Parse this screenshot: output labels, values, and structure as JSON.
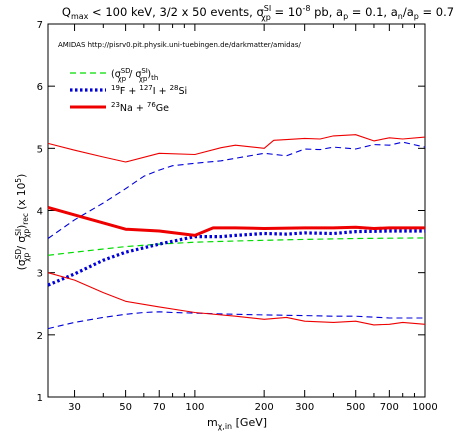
{
  "chart_data": {
    "type": "line",
    "title": "Q_max < 100 keV, 3/2 x 50 events, σ_χp^SI = 10^-8 pb, a_p = 0.1, a_n/a_p = 0.7",
    "title_parts": {
      "q": "Q",
      "q_sub": "max",
      "q_rest": " < 100 keV, 3/2 x 50 events, ",
      "sigma": "σ",
      "sigma_sup": "SI",
      "sigma_sub": "χp",
      "sigma_rest": " = 10",
      "exp": "-8",
      "pb_ap": " pb, a",
      "ap_sub": "p",
      "ap_val": " = 0.1, a",
      "an_sub": "n",
      "slash_a": "/a",
      "ap_sub2": "p",
      "ratio_val": " = 0.7"
    },
    "annotation": "AMIDAS   http://pisrv0.pit.physik.uni-tuebingen.de/darkmatter/amidas/",
    "xlabel": {
      "main": "m",
      "sub": "χ,in",
      "rest": " [GeV]"
    },
    "ylabel": {
      "open": "(σ",
      "sup1": "SD",
      "sub1": "χp",
      "mid": " / σ",
      "sup2": "SI",
      "sub2": "χp",
      "close": ")",
      "sub3": "rec",
      "rest": " (x 10",
      "exp": "5",
      "end": ")"
    },
    "x_scale": "log",
    "xlim": [
      23,
      1000
    ],
    "ylim": [
      1,
      7
    ],
    "x_ticks": [
      30,
      50,
      70,
      100,
      200,
      300,
      500,
      700,
      1000
    ],
    "x_tick_labels": [
      "30",
      "50",
      "70",
      "100",
      "200",
      "300",
      "500",
      "700",
      "1000"
    ],
    "y_ticks": [
      1,
      2,
      3,
      4,
      5,
      6,
      7
    ],
    "y_tick_labels": [
      "1",
      "2",
      "3",
      "4",
      "5",
      "6",
      "7"
    ],
    "x_minor_ticks": [
      40,
      60,
      80,
      90,
      400,
      600,
      800,
      900
    ],
    "legend_position": "top-left",
    "legend": [
      {
        "label": {
          "open": "(σ",
          "sup1": "SD",
          "sub1": "χp",
          "mid": " / σ",
          "sup2": "SI",
          "sub2": "χp",
          "close": ")",
          "sub3": "th"
        },
        "color": "#00dd00",
        "style": "dash"
      },
      {
        "label": {
          "sup1": "19",
          "t1": "F + ",
          "sup2": "127",
          "t2": "I + ",
          "sup3": "28",
          "t3": "Si"
        },
        "color": "#0000dd",
        "style": "dot"
      },
      {
        "label": {
          "sup1": "23",
          "t1": "Na + ",
          "sup2": "76",
          "t2": "Ge"
        },
        "color": "#ee0000",
        "style": "solid"
      }
    ],
    "series": [
      {
        "key": "theory",
        "color": "#00dd00",
        "style": "dash",
        "width": 1.2,
        "x": [
          23,
          30,
          40,
          50,
          70,
          100,
          150,
          200,
          300,
          500,
          700,
          1000
        ],
        "y": [
          3.28,
          3.33,
          3.38,
          3.42,
          3.46,
          3.49,
          3.51,
          3.52,
          3.535,
          3.55,
          3.555,
          3.56
        ]
      },
      {
        "key": "fisi_median",
        "color": "#0000dd",
        "style": "dot",
        "width": 3.2,
        "x": [
          23,
          30,
          40,
          50,
          70,
          100,
          130,
          150,
          200,
          250,
          300,
          400,
          500,
          700,
          1000
        ],
        "y": [
          2.8,
          2.98,
          3.2,
          3.33,
          3.46,
          3.58,
          3.58,
          3.6,
          3.63,
          3.62,
          3.64,
          3.63,
          3.66,
          3.67,
          3.67
        ]
      },
      {
        "key": "fisi_upper",
        "color": "#0000dd",
        "style": "dash",
        "width": 1.1,
        "x": [
          23,
          30,
          40,
          50,
          60,
          70,
          80,
          100,
          130,
          150,
          200,
          250,
          300,
          350,
          400,
          500,
          600,
          700,
          800,
          1000
        ],
        "y": [
          3.55,
          3.85,
          4.12,
          4.35,
          4.55,
          4.65,
          4.72,
          4.76,
          4.8,
          4.84,
          4.92,
          4.88,
          4.99,
          4.98,
          5.02,
          4.99,
          5.06,
          5.05,
          5.1,
          5.02
        ]
      },
      {
        "key": "fisi_lower",
        "color": "#0000dd",
        "style": "dash",
        "width": 1.1,
        "x": [
          23,
          30,
          40,
          50,
          60,
          70,
          80,
          100,
          150,
          200,
          300,
          400,
          500,
          700,
          1000
        ],
        "y": [
          2.1,
          2.2,
          2.28,
          2.33,
          2.36,
          2.37,
          2.36,
          2.35,
          2.33,
          2.32,
          2.31,
          2.3,
          2.3,
          2.27,
          2.27
        ]
      },
      {
        "key": "nage_median",
        "color": "#ee0000",
        "style": "solid",
        "width": 3.0,
        "x": [
          23,
          30,
          40,
          50,
          70,
          100,
          120,
          150,
          200,
          300,
          400,
          500,
          600,
          700,
          800,
          1000
        ],
        "y": [
          4.05,
          3.93,
          3.8,
          3.7,
          3.67,
          3.6,
          3.72,
          3.72,
          3.71,
          3.72,
          3.72,
          3.73,
          3.71,
          3.72,
          3.72,
          3.72
        ]
      },
      {
        "key": "nage_upper",
        "color": "#ee0000",
        "style": "solid",
        "width": 1.1,
        "x": [
          23,
          30,
          40,
          50,
          70,
          100,
          130,
          150,
          200,
          220,
          250,
          300,
          350,
          400,
          500,
          600,
          700,
          800,
          1000
        ],
        "y": [
          5.08,
          4.97,
          4.86,
          4.78,
          4.92,
          4.9,
          5.01,
          5.05,
          5.0,
          5.13,
          5.14,
          5.16,
          5.15,
          5.2,
          5.22,
          5.12,
          5.17,
          5.15,
          5.18
        ]
      },
      {
        "key": "nage_lower",
        "color": "#ee0000",
        "style": "solid",
        "width": 1.1,
        "x": [
          23,
          30,
          40,
          50,
          70,
          100,
          150,
          200,
          250,
          300,
          400,
          500,
          600,
          700,
          800,
          1000
        ],
        "y": [
          3.0,
          2.88,
          2.68,
          2.54,
          2.45,
          2.36,
          2.3,
          2.25,
          2.28,
          2.22,
          2.2,
          2.22,
          2.16,
          2.17,
          2.2,
          2.17
        ]
      }
    ]
  }
}
